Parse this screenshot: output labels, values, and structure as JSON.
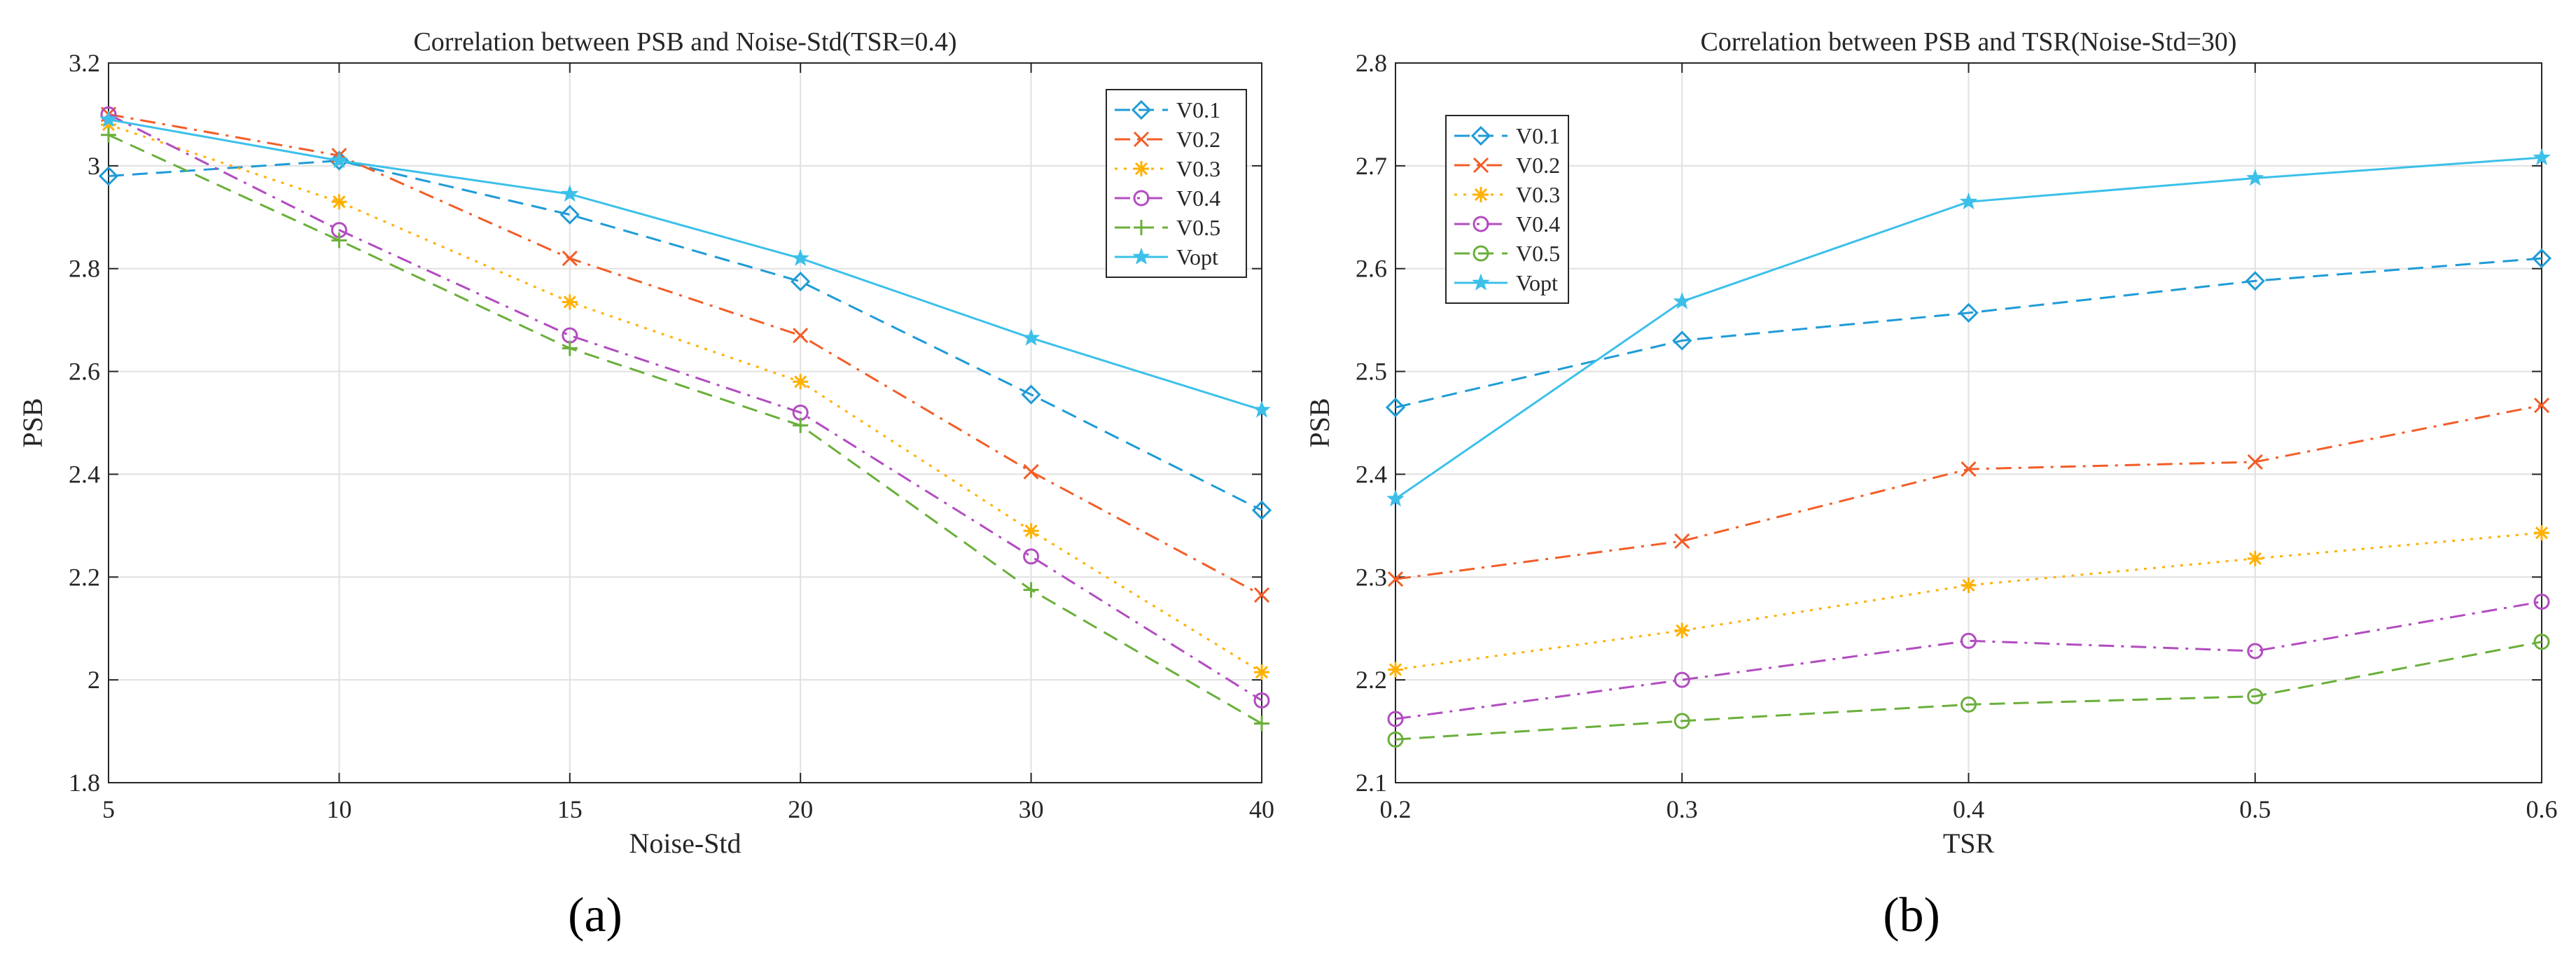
{
  "panels": [
    {
      "caption": "(a)"
    },
    {
      "caption": "(b)"
    }
  ],
  "colors": {
    "V0.1": "#1f9bd7",
    "V0.2": "#f25d27",
    "V0.3": "#ffb000",
    "V0.4": "#b24cc0",
    "V0.5": "#6aaf3a",
    "Vopt": "#3cc0ea"
  },
  "chart_data": [
    {
      "type": "line",
      "title": "Correlation between PSB and Noise-Std(TSR=0.4)",
      "xlabel": "Noise-Std",
      "ylabel": "PSB",
      "categories": [
        "5",
        "10",
        "15",
        "20",
        "30",
        "40"
      ],
      "ylim": [
        1.8,
        3.2
      ],
      "yticks": [
        "1.8",
        "2",
        "2.2",
        "2.4",
        "2.6",
        "2.8",
        "3",
        "3.2"
      ],
      "grid": true,
      "legend_position": "top-right",
      "series": [
        {
          "name": "V0.1",
          "marker": "diamond",
          "dash": "dashed",
          "values": [
            2.98,
            3.01,
            2.905,
            2.775,
            2.555,
            2.33
          ]
        },
        {
          "name": "V0.2",
          "marker": "x",
          "dash": "dashdot",
          "values": [
            3.1,
            3.02,
            2.82,
            2.67,
            2.405,
            2.165
          ]
        },
        {
          "name": "V0.3",
          "marker": "asterisk",
          "dash": "dotted",
          "values": [
            3.08,
            2.93,
            2.735,
            2.58,
            2.29,
            2.015
          ]
        },
        {
          "name": "V0.4",
          "marker": "circle",
          "dash": "dashdot",
          "values": [
            3.1,
            2.875,
            2.67,
            2.52,
            2.24,
            1.96
          ]
        },
        {
          "name": "V0.5",
          "marker": "plus",
          "dash": "dashed",
          "values": [
            3.06,
            2.855,
            2.645,
            2.495,
            2.175,
            1.915
          ]
        },
        {
          "name": "Vopt",
          "marker": "star",
          "dash": "solid",
          "values": [
            3.09,
            3.01,
            2.945,
            2.82,
            2.665,
            2.525
          ]
        }
      ]
    },
    {
      "type": "line",
      "title": "Correlation between PSB and TSR(Noise-Std=30)",
      "xlabel": "TSR",
      "ylabel": "PSB",
      "categories": [
        "0.2",
        "0.3",
        "0.4",
        "0.5",
        "0.6"
      ],
      "ylim": [
        2.1,
        2.8
      ],
      "yticks": [
        "2.1",
        "2.2",
        "2.3",
        "2.4",
        "2.5",
        "2.6",
        "2.7",
        "2.8"
      ],
      "grid": true,
      "legend_position": "top-left",
      "series": [
        {
          "name": "V0.1",
          "marker": "diamond",
          "dash": "dashed",
          "values": [
            2.465,
            2.53,
            2.557,
            2.588,
            2.61
          ]
        },
        {
          "name": "V0.2",
          "marker": "x",
          "dash": "dashdot",
          "values": [
            2.298,
            2.335,
            2.405,
            2.412,
            2.467
          ]
        },
        {
          "name": "V0.3",
          "marker": "asterisk",
          "dash": "dotted",
          "values": [
            2.21,
            2.248,
            2.292,
            2.318,
            2.343
          ]
        },
        {
          "name": "V0.4",
          "marker": "circle",
          "dash": "dashdot",
          "values": [
            2.162,
            2.2,
            2.238,
            2.228,
            2.276
          ]
        },
        {
          "name": "V0.5",
          "marker": "circle",
          "dash": "dashed",
          "values": [
            2.142,
            2.16,
            2.176,
            2.184,
            2.237
          ]
        },
        {
          "name": "Vopt",
          "marker": "star",
          "dash": "solid",
          "values": [
            2.376,
            2.568,
            2.665,
            2.688,
            2.708
          ]
        }
      ]
    }
  ]
}
